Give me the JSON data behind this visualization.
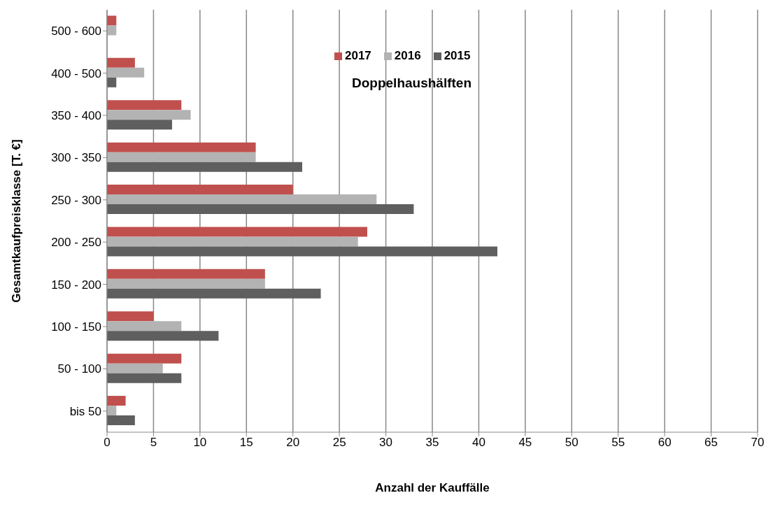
{
  "chart_data": {
    "type": "bar",
    "orientation": "horizontal",
    "title": "Doppelhaushälften",
    "xlabel": "Anzahl der Kauffälle",
    "ylabel": "Gesamtkaufpreisklasse    [T. €]",
    "categories": [
      "500 - 600",
      "400 - 500",
      "350 - 400",
      "300 - 350",
      "250 - 300",
      "200 - 250",
      "150 - 200",
      "100 - 150",
      "50 - 100",
      "bis 50"
    ],
    "series": [
      {
        "name": "2017",
        "color": "#c0504d",
        "values": [
          1,
          3,
          8,
          16,
          20,
          28,
          17,
          5,
          8,
          2
        ]
      },
      {
        "name": "2016",
        "color": "#b3b3b3",
        "values": [
          1,
          4,
          9,
          16,
          29,
          27,
          17,
          8,
          6,
          1
        ]
      },
      {
        "name": "2015",
        "color": "#5f5f5f",
        "values": [
          0,
          1,
          7,
          21,
          33,
          42,
          23,
          12,
          8,
          3
        ]
      }
    ],
    "xlim": [
      0,
      70
    ],
    "xticks": [
      0,
      5,
      10,
      15,
      20,
      25,
      30,
      35,
      40,
      45,
      50,
      55,
      60,
      65,
      70
    ],
    "grid": "x",
    "legend": "top"
  }
}
